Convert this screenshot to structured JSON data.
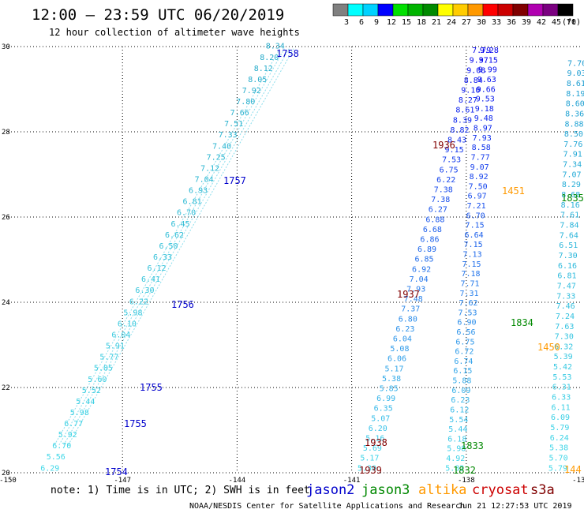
{
  "header": {
    "title": "12:00 — 23:59 UTC 06/20/2019",
    "subtitle": "12 hour collection of altimeter wave heights"
  },
  "colorbar": {
    "unit_label": "(ft)",
    "bins": [
      {
        "label": "3",
        "color": "#808080"
      },
      {
        "label": "6",
        "color": "#00ffff"
      },
      {
        "label": "9",
        "color": "#00d2ff"
      },
      {
        "label": "12",
        "color": "#0000ff"
      },
      {
        "label": "15",
        "color": "#00e000"
      },
      {
        "label": "18",
        "color": "#00b400"
      },
      {
        "label": "21",
        "color": "#008a00"
      },
      {
        "label": "24",
        "color": "#ffff00"
      },
      {
        "label": "27",
        "color": "#ffcc00"
      },
      {
        "label": "30",
        "color": "#ff9900"
      },
      {
        "label": "33",
        "color": "#ff0000"
      },
      {
        "label": "36",
        "color": "#cc0000"
      },
      {
        "label": "39",
        "color": "#800000"
      },
      {
        "label": "42",
        "color": "#b000b0"
      },
      {
        "label": "45",
        "color": "#7a0080"
      },
      {
        "label": "70",
        "color": "#000000"
      }
    ]
  },
  "map": {
    "lon_range": [
      -150,
      -135
    ],
    "lat_range": [
      20,
      30
    ],
    "lon_ticks": [
      "-150",
      "-147",
      "-144",
      "-141",
      "-138",
      "-135"
    ],
    "lat_ticks": [
      "30",
      "28",
      "26",
      "24",
      "22",
      "20"
    ]
  },
  "tracks": [
    {
      "name": "west",
      "start": [
        -148.9,
        20.05
      ],
      "end": [
        -143.0,
        29.95
      ],
      "color_low": "#40d8e8",
      "color_high": "#22a8c8",
      "values": [
        "6.29",
        "5.56",
        "6.70",
        "5.92",
        "6.77",
        "5.98",
        "5.44",
        "5.52",
        "5.60",
        "5.85",
        "5.77",
        "5.91",
        "6.04",
        "6.10",
        "5.98",
        "6.22",
        "6.30",
        "6.41",
        "6.12",
        "6.33",
        "6.50",
        "6.62",
        "6.45",
        "6.70",
        "6.81",
        "6.93",
        "7.04",
        "7.12",
        "7.25",
        "7.40",
        "7.33",
        "7.51",
        "7.66",
        "7.80",
        "7.92",
        "8.05",
        "8.12",
        "8.20",
        "8.34"
      ]
    },
    {
      "name": "center-west",
      "start": [
        -140.6,
        20.05
      ],
      "end": [
        -137.6,
        29.85
      ],
      "color_low": "#40d8e8",
      "color_high": "#0000ee",
      "values": [
        "5.30",
        "5.17",
        "5.69",
        "5.16",
        "6.20",
        "5.07",
        "6.35",
        "6.99",
        "5.85",
        "5.38",
        "5.17",
        "6.06",
        "5.08",
        "6.04",
        "6.23",
        "6.80",
        "7.37",
        "7.48",
        "7.93",
        "7.04",
        "6.92",
        "6.85",
        "6.89",
        "6.86",
        "6.68",
        "6.88",
        "6.27",
        "7.38",
        "7.38",
        "6.22",
        "6.75",
        "7.53",
        "9.15",
        "8.43",
        "8.82",
        "8.39",
        "8.61",
        "8.27",
        "9.10",
        "8.84",
        "9.08",
        "9.37",
        "7.79"
      ]
    },
    {
      "name": "center-east",
      "start": [
        -138.3,
        20.05
      ],
      "end": [
        -137.4,
        29.85
      ],
      "color_low": "#40d8e8",
      "color_high": "#0000ee",
      "values": [
        "5.82",
        "4.92",
        "5.98",
        "6.18",
        "5.44",
        "5.54",
        "6.12",
        "6.23",
        "6.09",
        "5.88",
        "6.15",
        "6.74",
        "6.72",
        "6.75",
        "6.56",
        "6.90",
        "7.53",
        "7.62",
        "7.31",
        "7.71",
        "7.18",
        "7.15",
        "7.13",
        "7.15",
        "6.64",
        "7.15",
        "6.70",
        "7.21",
        "6.97",
        "7.50",
        "8.92",
        "9.07",
        "7.77",
        "8.58",
        "7.93",
        "8.97",
        "9.48",
        "9.18",
        "9.53",
        "9.66",
        "9.63",
        "9.99",
        "9.15",
        "9.28"
      ]
    },
    {
      "name": "east",
      "start": [
        -135.6,
        20.05
      ],
      "end": [
        -135.1,
        29.55
      ],
      "color_low": "#40d8e8",
      "color_high": "#1a9ad0",
      "values": [
        "5.79",
        "5.70",
        "5.38",
        "6.24",
        "5.79",
        "6.09",
        "6.11",
        "6.33",
        "6.31",
        "5.53",
        "5.42",
        "5.39",
        "6.32",
        "7.30",
        "7.63",
        "7.24",
        "7.46",
        "7.33",
        "7.47",
        "6.81",
        "6.16",
        "7.30",
        "6.51",
        "7.64",
        "7.84",
        "7.61",
        "8.16",
        "8.68",
        "8.29",
        "7.07",
        "7.34",
        "7.91",
        "7.76",
        "8.50",
        "8.88",
        "8.36",
        "8.60",
        "8.19",
        "8.61",
        "9.03",
        "7.70"
      ]
    }
  ],
  "time_labels": [
    {
      "text": "1754",
      "color": "#0000cc"
    },
    {
      "text": "1755",
      "color": "#0000cc"
    },
    {
      "text": "1755",
      "color": "#0000cc"
    },
    {
      "text": "1756",
      "color": "#0000cc"
    },
    {
      "text": "1757",
      "color": "#0000cc"
    },
    {
      "text": "1758",
      "color": "#0000cc"
    },
    {
      "text": "1939",
      "color": "#800000"
    },
    {
      "text": "1938",
      "color": "#800000"
    },
    {
      "text": "1937",
      "color": "#800000"
    },
    {
      "text": "1936",
      "color": "#800000"
    },
    {
      "text": "1832",
      "color": "#008800"
    },
    {
      "text": "1833",
      "color": "#008800"
    },
    {
      "text": "1834",
      "color": "#008800"
    },
    {
      "text": "1835",
      "color": "#008800"
    },
    {
      "text": "1450",
      "color": "#ff9900"
    },
    {
      "text": "1451",
      "color": "#ff9900"
    },
    {
      "text": "144",
      "color": "#ff9900"
    }
  ],
  "footer": {
    "note": "note: 1) Time is in UTC; 2) SWH is in feet",
    "satellites": [
      {
        "name": "jason2",
        "color": "#0000cc"
      },
      {
        "name": "jason3",
        "color": "#008800"
      },
      {
        "name": "altika",
        "color": "#ff9900"
      },
      {
        "name": "cryosat",
        "color": "#cc0000"
      },
      {
        "name": "s3a",
        "color": "#800000"
      }
    ],
    "credit": "NOAA/NESDIS Center for Satellite Applications and Research",
    "timestamp": "Jun 21 12:27:53 UTC 2019"
  }
}
